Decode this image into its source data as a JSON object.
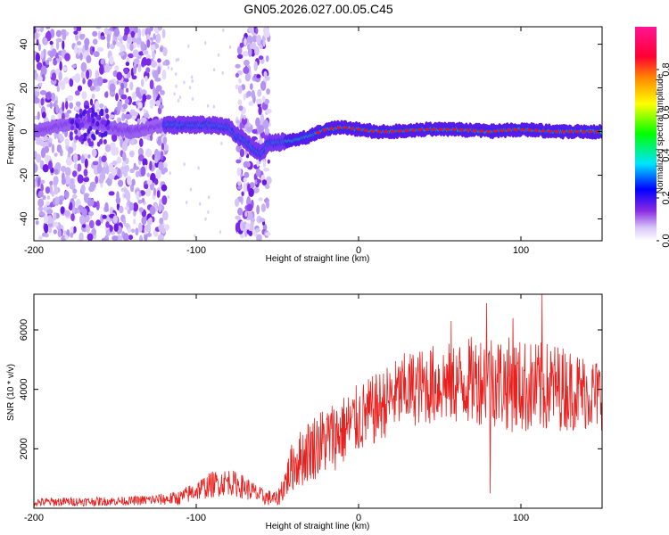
{
  "page": {
    "title": "GN05.2026.027.00.05.C45"
  },
  "colors": {
    "snr_line": "#e8201e",
    "spectrogram_low": "#b6a0f3",
    "spectrogram_mid": "#7a30ee",
    "spectrogram_track": "#0f2fe6",
    "spectrogram_peak": "#e81424",
    "frame": "#000000"
  },
  "chart_data": [
    {
      "type": "heatmap",
      "title": "GN05.2026.027.00.05.C45",
      "xlabel": "Height of straight line (km)",
      "ylabel": "Frequency (Hz)",
      "xlim": [
        -200,
        150
      ],
      "ylim": [
        -50,
        48
      ],
      "x_ticks": [
        -200,
        -100,
        0,
        100
      ],
      "y_ticks": [
        40,
        20,
        0,
        -20,
        -40
      ],
      "grid": false,
      "colorbar": {
        "label": "Normalized spectral amplitude",
        "range": [
          0,
          1
        ],
        "ticks": [
          "0.0",
          "0.2",
          "0.4",
          "0.6",
          "0.8"
        ],
        "colormap": [
          "#ffffff",
          "#d8c8f8",
          "#8a2be2",
          "#0000ff",
          "#00e5ff",
          "#00ff00",
          "#ffff00",
          "#ff8800",
          "#ff0033",
          "#ff1493"
        ]
      },
      "dominant_frequency_track": {
        "x": [
          -200,
          -170,
          -160,
          -140,
          -120,
          -100,
          -90,
          -80,
          -75,
          -70,
          -65,
          -60,
          -55,
          -50,
          -40,
          -30,
          -20,
          -10,
          0,
          10,
          20,
          40,
          60,
          80,
          100,
          120,
          150
        ],
        "y": [
          0,
          5,
          3,
          0,
          3,
          3,
          3,
          2,
          -2,
          -4,
          -8,
          -10,
          -5,
          -5,
          -4,
          -2,
          1,
          2,
          1,
          0,
          0,
          1,
          1,
          0,
          1,
          0,
          0
        ]
      },
      "broadband_noise_ranges_km": [
        [
          -200,
          -118
        ],
        [
          -75,
          -55
        ]
      ]
    },
    {
      "type": "line",
      "xlabel": "Height of straight line (km)",
      "ylabel": "SNR (10 * v/v)",
      "xlim": [
        -200,
        150
      ],
      "ylim": [
        0,
        7200
      ],
      "x_ticks": [
        -200,
        -100,
        0,
        100
      ],
      "y_ticks": [
        2000,
        4000,
        6000
      ],
      "grid": false,
      "series": [
        {
          "x": [
            -200,
            -180,
            -160,
            -140,
            -120,
            -110,
            -100,
            -90,
            -80,
            -70,
            -60,
            -50,
            -45,
            -40,
            -35,
            -30,
            -20,
            -10,
            0,
            10,
            20,
            30,
            40,
            50,
            60,
            70,
            80,
            90,
            100,
            110,
            120,
            130,
            140,
            150
          ],
          "y": [
            200,
            220,
            230,
            250,
            300,
            350,
            600,
            800,
            900,
            700,
            400,
            300,
            900,
            1500,
            1700,
            2000,
            2300,
            2600,
            3000,
            3300,
            3700,
            4000,
            4100,
            4200,
            4200,
            4300,
            4400,
            4200,
            4100,
            4000,
            4100,
            4000,
            3900,
            3800
          ],
          "spread": [
            150,
            150,
            150,
            150,
            200,
            250,
            350,
            450,
            450,
            400,
            300,
            250,
            600,
            900,
            1000,
            1100,
            1200,
            1200,
            1200,
            1200,
            1200,
            1300,
            1300,
            1400,
            1400,
            1500,
            1600,
            1600,
            1600,
            1600,
            1500,
            1400,
            1300,
            1200
          ],
          "spikes": [
            {
              "x": 79,
              "y": 6900
            },
            {
              "x": 113,
              "y": 7200
            },
            {
              "x": 95,
              "y": 6400
            },
            {
              "x": 57,
              "y": 6300
            },
            {
              "x": 81,
              "y": 500
            }
          ]
        }
      ]
    }
  ]
}
